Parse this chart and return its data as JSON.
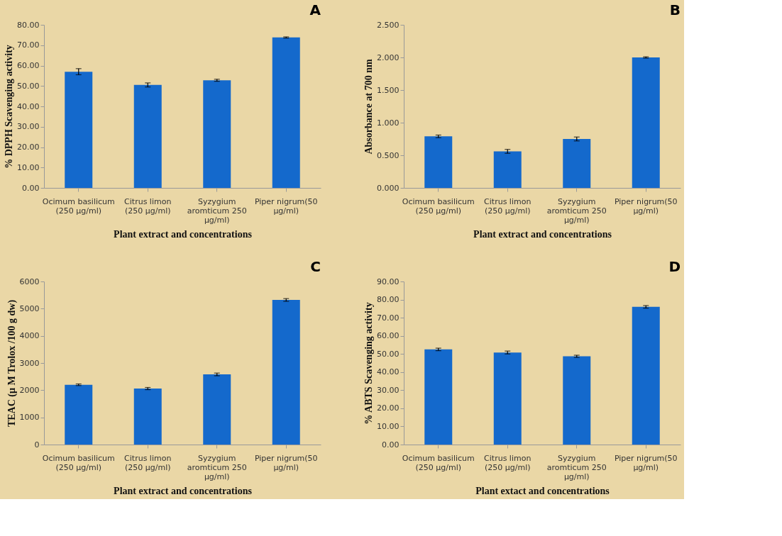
{
  "chart_data": [
    {
      "type": "bar",
      "title": "A",
      "xlabel": "Plant extract and concentrations",
      "ylabel": "% DPPH Scavenging activity",
      "categories": [
        "Ocimum basilicum (250 µg/ml)",
        "Citrus limon (250 µg/ml)",
        "Syzygium aromticum 250 µg/ml)",
        "Piper nigrum(50 µg/ml)"
      ],
      "values": [
        57.0,
        50.5,
        52.8,
        73.8
      ],
      "errors": [
        1.5,
        1.0,
        0.5,
        0.3
      ],
      "color": "#1469cc",
      "ylim": [
        0,
        80
      ],
      "yticks": [
        {
          "value": 0,
          "label": "0.00"
        },
        {
          "value": 10,
          "label": "10.00"
        },
        {
          "value": 20,
          "label": "20.00"
        },
        {
          "value": 30,
          "label": "30.00"
        },
        {
          "value": 40,
          "label": "40.00"
        },
        {
          "value": 50,
          "label": "50.00"
        },
        {
          "value": 60,
          "label": "60.00"
        },
        {
          "value": 70,
          "label": "70.00"
        },
        {
          "value": 80,
          "label": "80.00"
        }
      ],
      "grid": false
    },
    {
      "type": "bar",
      "title": "B",
      "xlabel": "Plant extract and concentrations",
      "ylabel": "Absorbance at 700 nm",
      "categories": [
        "Ocimum basilicum (250 µg/ml)",
        "Citrus limon (250 µg/ml)",
        "Syzygium aromticum 250 µg/ml)",
        "Piper nigrum(50 µg/ml)"
      ],
      "values": [
        0.79,
        0.56,
        0.75,
        2.0
      ],
      "errors": [
        0.02,
        0.03,
        0.03,
        0.01
      ],
      "color": "#1469cc",
      "ylim": [
        0,
        2.5
      ],
      "yticks": [
        {
          "value": 0,
          "label": "0.000"
        },
        {
          "value": 0.5,
          "label": "0.500"
        },
        {
          "value": 1,
          "label": "1.000"
        },
        {
          "value": 1.5,
          "label": "1.500"
        },
        {
          "value": 2,
          "label": "2.000"
        },
        {
          "value": 2.5,
          "label": "2.500"
        }
      ],
      "grid": false
    },
    {
      "type": "bar",
      "title": "C",
      "xlabel": "Plant extract and concentrations",
      "ylabel": "TEAC (µ M Trolox /100 g dw)",
      "categories": [
        "Ocimum basilicum (250 µg/ml)",
        "Citrus limon (250 µg/ml)",
        "Syzygium aromticum 250 µg/ml)",
        "Piper nigrum(50 µg/ml)"
      ],
      "values": [
        2200,
        2060,
        2580,
        5320
      ],
      "errors": [
        30,
        40,
        50,
        50
      ],
      "color": "#1469cc",
      "ylim": [
        0,
        6000
      ],
      "yticks": [
        0,
        1000,
        2000,
        3000,
        4000,
        5000,
        6000
      ],
      "grid": false
    },
    {
      "type": "bar",
      "title": "D",
      "xlabel": "Plant extact and concentrations",
      "ylabel": "% ABTS Scavenging activity",
      "categories": [
        "Ocimum basilicum (250 µg/ml)",
        "Citrus limon (250 µg/ml)",
        "Syzygium aromticum 250 µg/ml)",
        "Piper nigrum(50 µg/ml)"
      ],
      "values": [
        52.5,
        50.8,
        48.7,
        76.0
      ],
      "errors": [
        0.7,
        0.8,
        0.6,
        0.7
      ],
      "color": "#1469cc",
      "ylim": [
        0,
        90
      ],
      "yticks": [
        {
          "value": 0,
          "label": "0.00"
        },
        {
          "value": 10,
          "label": "10.00"
        },
        {
          "value": 20,
          "label": "20.00"
        },
        {
          "value": 30,
          "label": "30.00"
        },
        {
          "value": 40,
          "label": "40.00"
        },
        {
          "value": 50,
          "label": "50.00"
        },
        {
          "value": 60,
          "label": "60.00"
        },
        {
          "value": 70,
          "label": "70.00"
        },
        {
          "value": 80,
          "label": "80.00"
        },
        {
          "value": 90,
          "label": "90.00"
        }
      ],
      "grid": false
    }
  ]
}
